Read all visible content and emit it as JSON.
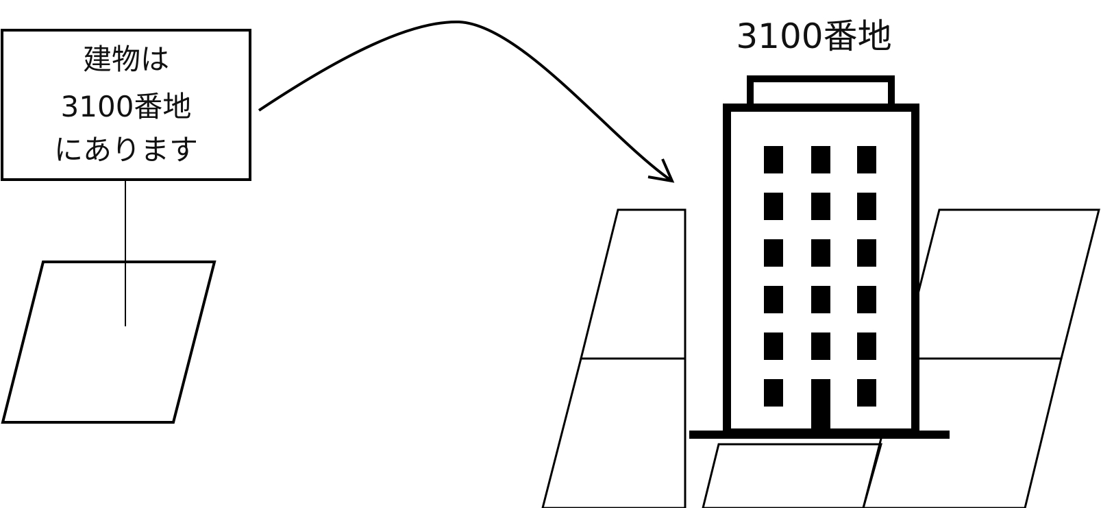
{
  "sign": {
    "lines": [
      "建物は",
      "3100番地",
      "にあります"
    ]
  },
  "building": {
    "label": "3100番地"
  },
  "colors": {
    "stroke": "#000000",
    "background": "#ffffff"
  }
}
